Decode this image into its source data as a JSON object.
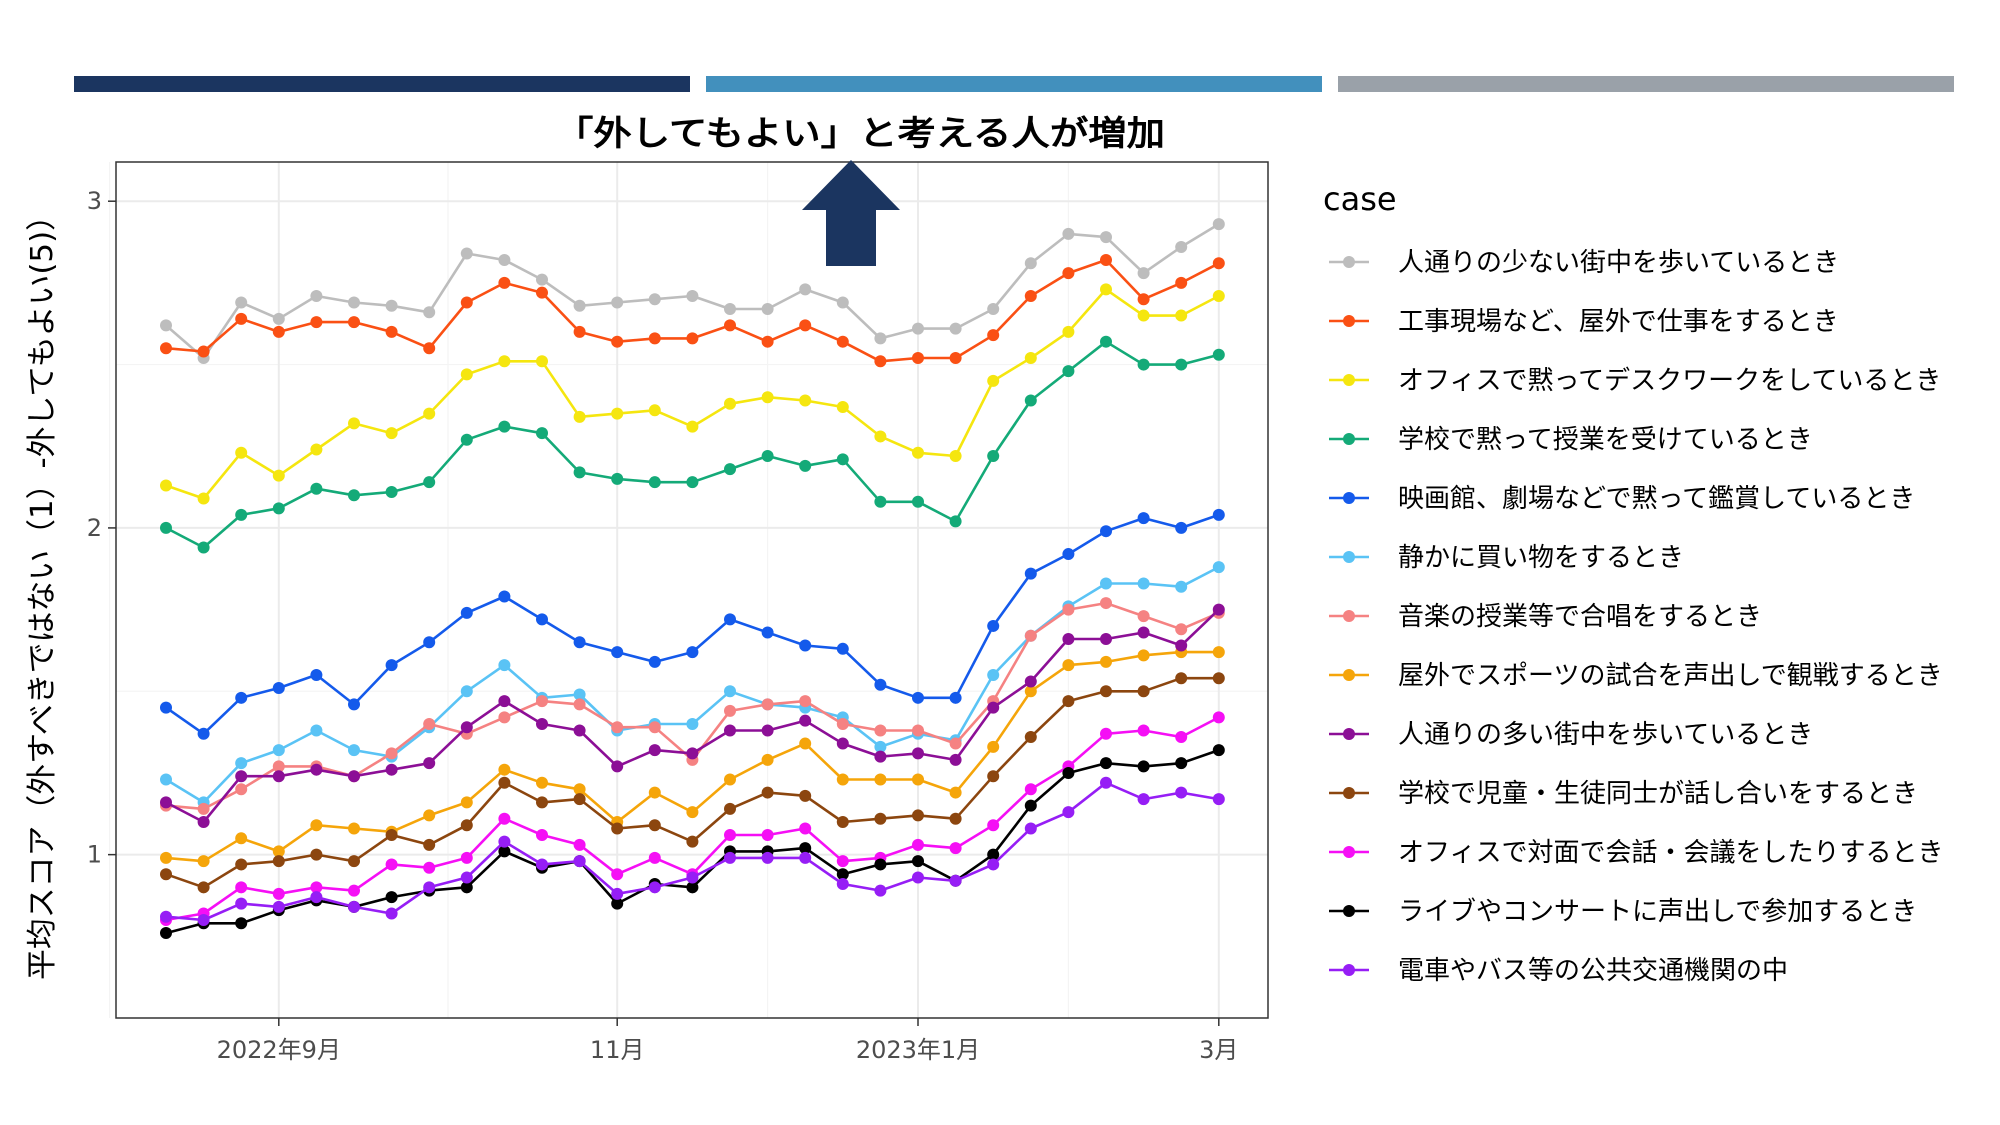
{
  "header_bars": [
    {
      "name": "navy",
      "color": "#1b3560"
    },
    {
      "name": "blue",
      "color": "#4290bd"
    },
    {
      "name": "gray",
      "color": "#9aa1a9"
    }
  ],
  "annotation": {
    "text": "「外してもよい」と考える人が増加",
    "arrow_color": "#1b3560"
  },
  "chart_data": {
    "type": "line",
    "ylabel": "平均スコア（外すべきではない（1）-外してもよい(5)）",
    "xlabel": "",
    "ylim": [
      0.5,
      3.12
    ],
    "yticks": [
      1,
      2,
      3
    ],
    "x_count": 29,
    "x_ticks": [
      {
        "index": 3,
        "label": "2022年9月"
      },
      {
        "index": 12,
        "label": "11月"
      },
      {
        "index": 20,
        "label": "2023年1月"
      },
      {
        "index": 28,
        "label": "3月"
      }
    ],
    "grid": true,
    "legend": {
      "title": "case",
      "position": "right"
    },
    "series": [
      {
        "name": "人通りの少ない街中を歩いているとき",
        "color": "#bdbdbd",
        "values": [
          2.62,
          2.52,
          2.69,
          2.64,
          2.71,
          2.69,
          2.68,
          2.66,
          2.84,
          2.82,
          2.76,
          2.68,
          2.69,
          2.7,
          2.71,
          2.67,
          2.67,
          2.73,
          2.69,
          2.58,
          2.61,
          2.61,
          2.67,
          2.81,
          2.9,
          2.89,
          2.78,
          2.86,
          2.93
        ]
      },
      {
        "name": "工事現場など、屋外で仕事をするとき",
        "color": "#fa5014",
        "values": [
          2.55,
          2.54,
          2.64,
          2.6,
          2.63,
          2.63,
          2.6,
          2.55,
          2.69,
          2.75,
          2.72,
          2.6,
          2.57,
          2.58,
          2.58,
          2.62,
          2.57,
          2.62,
          2.57,
          2.51,
          2.52,
          2.52,
          2.59,
          2.71,
          2.78,
          2.82,
          2.7,
          2.75,
          2.81
        ]
      },
      {
        "name": "オフィスで黙ってデスクワークをしているとき",
        "color": "#f5e60f",
        "values": [
          2.13,
          2.09,
          2.23,
          2.16,
          2.24,
          2.32,
          2.29,
          2.35,
          2.47,
          2.51,
          2.51,
          2.34,
          2.35,
          2.36,
          2.31,
          2.38,
          2.4,
          2.39,
          2.37,
          2.28,
          2.23,
          2.22,
          2.45,
          2.52,
          2.6,
          2.73,
          2.65,
          2.65,
          2.71
        ]
      },
      {
        "name": "学校で黙って授業を受けているとき",
        "color": "#14aa78",
        "values": [
          2.0,
          1.94,
          2.04,
          2.06,
          2.12,
          2.1,
          2.11,
          2.14,
          2.27,
          2.31,
          2.29,
          2.17,
          2.15,
          2.14,
          2.14,
          2.18,
          2.22,
          2.19,
          2.21,
          2.08,
          2.08,
          2.02,
          2.22,
          2.39,
          2.48,
          2.57,
          2.5,
          2.5,
          2.53
        ]
      },
      {
        "name": "映画館、劇場などで黙って鑑賞しているとき",
        "color": "#145aeb",
        "values": [
          1.45,
          1.37,
          1.48,
          1.51,
          1.55,
          1.46,
          1.58,
          1.65,
          1.74,
          1.79,
          1.72,
          1.65,
          1.62,
          1.59,
          1.62,
          1.72,
          1.68,
          1.64,
          1.63,
          1.52,
          1.48,
          1.48,
          1.7,
          1.86,
          1.92,
          1.99,
          2.03,
          2.0,
          2.04
        ]
      },
      {
        "name": "静かに買い物をするとき",
        "color": "#5ac3f5",
        "values": [
          1.23,
          1.16,
          1.28,
          1.32,
          1.38,
          1.32,
          1.3,
          1.39,
          1.5,
          1.58,
          1.48,
          1.49,
          1.38,
          1.4,
          1.4,
          1.5,
          1.46,
          1.45,
          1.42,
          1.33,
          1.37,
          1.35,
          1.55,
          1.67,
          1.76,
          1.83,
          1.83,
          1.82,
          1.88
        ]
      },
      {
        "name": "音楽の授業等で合唱をするとき",
        "color": "#f58282",
        "values": [
          1.15,
          1.14,
          1.2,
          1.27,
          1.27,
          1.24,
          1.31,
          1.4,
          1.37,
          1.42,
          1.47,
          1.46,
          1.39,
          1.39,
          1.29,
          1.44,
          1.46,
          1.47,
          1.4,
          1.38,
          1.38,
          1.34,
          1.47,
          1.67,
          1.75,
          1.77,
          1.73,
          1.69,
          1.74
        ]
      },
      {
        "name": "屋外でスポーツの試合を声出しで観戦するとき",
        "color": "#f5a50a",
        "values": [
          0.99,
          0.98,
          1.05,
          1.01,
          1.09,
          1.08,
          1.07,
          1.12,
          1.16,
          1.26,
          1.22,
          1.2,
          1.1,
          1.19,
          1.13,
          1.23,
          1.29,
          1.34,
          1.23,
          1.23,
          1.23,
          1.19,
          1.33,
          1.5,
          1.58,
          1.59,
          1.61,
          1.62,
          1.62
        ]
      },
      {
        "name": "人通りの多い街中を歩いているとき",
        "color": "#8c0f96",
        "values": [
          1.16,
          1.1,
          1.24,
          1.24,
          1.26,
          1.24,
          1.26,
          1.28,
          1.39,
          1.47,
          1.4,
          1.38,
          1.27,
          1.32,
          1.31,
          1.38,
          1.38,
          1.41,
          1.34,
          1.3,
          1.31,
          1.29,
          1.45,
          1.53,
          1.66,
          1.66,
          1.68,
          1.64,
          1.75
        ]
      },
      {
        "name": "学校で児童・生徒同士が話し合いをするとき",
        "color": "#8c460f",
        "values": [
          0.94,
          0.9,
          0.97,
          0.98,
          1.0,
          0.98,
          1.06,
          1.03,
          1.09,
          1.22,
          1.16,
          1.17,
          1.08,
          1.09,
          1.04,
          1.14,
          1.19,
          1.18,
          1.1,
          1.11,
          1.12,
          1.11,
          1.24,
          1.36,
          1.47,
          1.5,
          1.5,
          1.54,
          1.54
        ]
      },
      {
        "name": "オフィスで対面で会話・会議をしたりするとき",
        "color": "#f50ff5",
        "values": [
          0.8,
          0.82,
          0.9,
          0.88,
          0.9,
          0.89,
          0.97,
          0.96,
          0.99,
          1.11,
          1.06,
          1.03,
          0.94,
          0.99,
          0.94,
          1.06,
          1.06,
          1.08,
          0.98,
          0.99,
          1.03,
          1.02,
          1.09,
          1.2,
          1.27,
          1.37,
          1.38,
          1.36,
          1.42
        ]
      },
      {
        "name": "ライブやコンサートに声出しで参加するとき",
        "color": "#000000",
        "values": [
          0.76,
          0.79,
          0.79,
          0.83,
          0.86,
          0.84,
          0.87,
          0.89,
          0.9,
          1.01,
          0.96,
          0.98,
          0.85,
          0.91,
          0.9,
          1.01,
          1.01,
          1.02,
          0.94,
          0.97,
          0.98,
          0.92,
          1.0,
          1.15,
          1.25,
          1.28,
          1.27,
          1.28,
          1.32
        ]
      },
      {
        "name": "電車やバス等の公共交通機関の中",
        "color": "#961ef5",
        "values": [
          0.81,
          0.8,
          0.85,
          0.84,
          0.87,
          0.84,
          0.82,
          0.9,
          0.93,
          1.04,
          0.97,
          0.98,
          0.88,
          0.9,
          0.93,
          0.99,
          0.99,
          0.99,
          0.91,
          0.89,
          0.93,
          0.92,
          0.97,
          1.08,
          1.13,
          1.22,
          1.17,
          1.19,
          1.17
        ]
      }
    ]
  }
}
